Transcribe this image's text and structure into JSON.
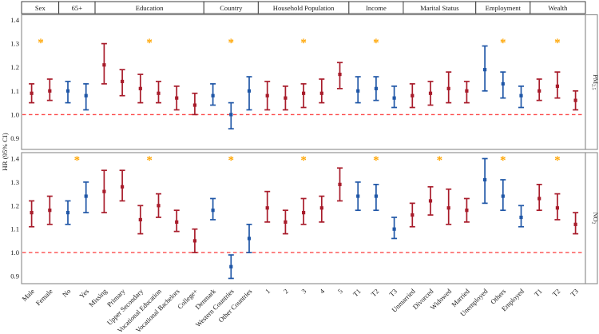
{
  "chart_data": {
    "type": "scatter",
    "variant": "forest-plot-pointrange-two-panels",
    "ylabel": "HR (95% CI)",
    "yticks": [
      "1.4",
      "1.3",
      "1.2",
      "1.1",
      "1.0",
      "0.9"
    ],
    "ytick_values": [
      1.4,
      1.3,
      1.2,
      1.1,
      1.0,
      0.9
    ],
    "ylim": [
      0.87,
      1.43
    ],
    "reference_line": 1.0,
    "significance_marker": "*",
    "grid": "off",
    "colors": {
      "red_series": "#A81C2B",
      "blue_series": "#2057A7",
      "asterisk": "#FFA500",
      "reference_line": "#FC4A4A",
      "text": "#1A1A1A",
      "panel_border": "#8A8A8A",
      "header_border": "#2B2B2B"
    },
    "groups": [
      {
        "label": "Sex",
        "color": "red_series",
        "categories": [
          "Male",
          "Female"
        ]
      },
      {
        "label": "65+",
        "color": "blue_series",
        "categories": [
          "No",
          "Yes"
        ]
      },
      {
        "label": "Education",
        "color": "red_series",
        "categories": [
          "Missing",
          "Primary",
          "Upper Secondary",
          "Vocational Education",
          "Vocational Bachelors",
          "College+"
        ]
      },
      {
        "label": "Country",
        "color": "blue_series",
        "categories": [
          "Denmark",
          "Western Countries",
          "Other Countries"
        ]
      },
      {
        "label": "Household Population",
        "color": "red_series",
        "categories": [
          "1",
          "2",
          "3",
          "4",
          "5"
        ]
      },
      {
        "label": "Income",
        "color": "blue_series",
        "categories": [
          "T1",
          "T2",
          "T3"
        ]
      },
      {
        "label": "Marital Status",
        "color": "red_series",
        "categories": [
          "Unmarried",
          "Divorced",
          "Widowed",
          "Married"
        ]
      },
      {
        "label": "Employment",
        "color": "blue_series",
        "categories": [
          "Unemployed",
          "Others",
          "Employed"
        ]
      },
      {
        "label": "Wealth",
        "color": "red_series",
        "categories": [
          "T1",
          "T2",
          "T3"
        ]
      }
    ],
    "panels": [
      {
        "strip_main": "PM",
        "strip_sub": "2.5",
        "significant_group_indices": [
          0,
          2,
          3,
          4,
          5,
          7,
          8
        ],
        "est": [
          1.09,
          1.1,
          1.1,
          1.08,
          1.21,
          1.14,
          1.11,
          1.09,
          1.07,
          1.04,
          1.08,
          1.0,
          1.1,
          1.08,
          1.07,
          1.09,
          1.09,
          1.17,
          1.1,
          1.11,
          1.07,
          1.08,
          1.09,
          1.11,
          1.1,
          1.19,
          1.13,
          1.08,
          1.1,
          1.12,
          1.06
        ],
        "lo": [
          1.05,
          1.06,
          1.05,
          1.02,
          1.13,
          1.08,
          1.05,
          1.05,
          1.02,
          1.0,
          1.04,
          0.94,
          1.02,
          1.02,
          1.02,
          1.03,
          1.05,
          1.11,
          1.05,
          1.06,
          1.03,
          1.03,
          1.04,
          1.05,
          1.05,
          1.1,
          1.07,
          1.03,
          1.06,
          1.07,
          1.02
        ],
        "hi": [
          1.13,
          1.15,
          1.14,
          1.13,
          1.3,
          1.19,
          1.17,
          1.14,
          1.12,
          1.09,
          1.13,
          1.05,
          1.16,
          1.14,
          1.12,
          1.13,
          1.15,
          1.22,
          1.16,
          1.16,
          1.12,
          1.13,
          1.14,
          1.18,
          1.14,
          1.29,
          1.18,
          1.12,
          1.15,
          1.18,
          1.1
        ]
      },
      {
        "strip_main": "NO",
        "strip_sub": "2",
        "significant_group_indices": [
          1,
          2,
          3,
          4,
          5,
          6,
          7,
          8
        ],
        "est": [
          1.17,
          1.18,
          1.17,
          1.24,
          1.26,
          1.28,
          1.14,
          1.2,
          1.13,
          1.05,
          1.18,
          0.94,
          1.06,
          1.19,
          1.13,
          1.17,
          1.19,
          1.29,
          1.24,
          1.24,
          1.1,
          1.16,
          1.22,
          1.19,
          1.18,
          1.31,
          1.24,
          1.15,
          1.23,
          1.19,
          1.12
        ],
        "lo": [
          1.11,
          1.12,
          1.12,
          1.17,
          1.17,
          1.22,
          1.08,
          1.15,
          1.09,
          1.0,
          1.14,
          0.89,
          1.0,
          1.13,
          1.08,
          1.12,
          1.13,
          1.22,
          1.18,
          1.18,
          1.06,
          1.11,
          1.16,
          1.12,
          1.13,
          1.21,
          1.18,
          1.11,
          1.18,
          1.14,
          1.08
        ],
        "hi": [
          1.22,
          1.24,
          1.22,
          1.3,
          1.35,
          1.35,
          1.2,
          1.25,
          1.18,
          1.1,
          1.23,
          0.99,
          1.12,
          1.26,
          1.18,
          1.23,
          1.24,
          1.36,
          1.3,
          1.29,
          1.15,
          1.21,
          1.28,
          1.27,
          1.23,
          1.4,
          1.31,
          1.2,
          1.29,
          1.25,
          1.17
        ]
      }
    ]
  }
}
